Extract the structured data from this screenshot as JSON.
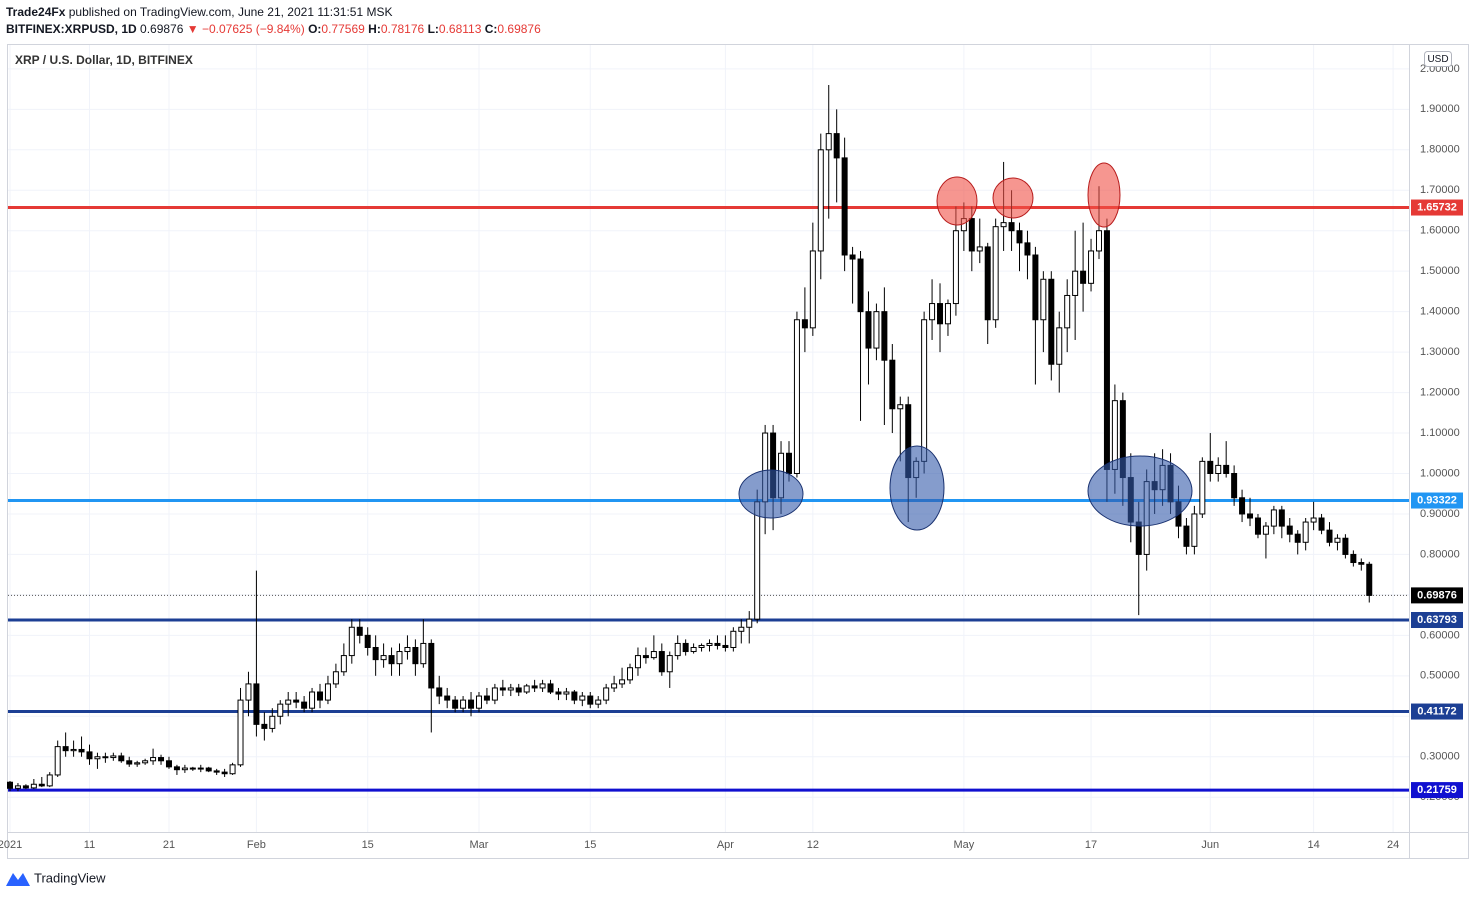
{
  "header": {
    "author": "Trade24Fx",
    "published": "published on TradingView.com, June 21, 2021 11:31:51 MSK",
    "symbol": "BITFINEX:XRPUSD, 1D",
    "price": "0.69876",
    "change": "▼ −0.07625 (−9.84%)",
    "ohlc": [
      {
        "key": "O:",
        "value": "0.77569"
      },
      {
        "key": "H:",
        "value": "0.78176"
      },
      {
        "key": "L:",
        "value": "0.68113"
      },
      {
        "key": "C:",
        "value": "0.69876"
      }
    ]
  },
  "footer": {
    "brand": "TradingView"
  },
  "chart_data": {
    "type": "candlestick",
    "title": "XRP / U.S. Dollar, 1D, BITFINEX",
    "currency": "USD",
    "up_color": "#ffffff",
    "down_color": "#000000",
    "grid": true,
    "xlim": [
      "2021-01-01",
      "2021-06-26"
    ],
    "ylim": [
      0.114,
      2.059
    ],
    "yticks": [
      {
        "value": 0.2,
        "label": "0.20000"
      },
      {
        "value": 0.3,
        "label": "0.30000"
      },
      {
        "value": 0.4,
        "label": "0.40000"
      },
      {
        "value": 0.5,
        "label": "0.50000"
      },
      {
        "value": 0.6,
        "label": "0.60000"
      },
      {
        "value": 0.7,
        "label": "0.70000"
      },
      {
        "value": 0.8,
        "label": "0.80000"
      },
      {
        "value": 0.9,
        "label": "0.90000"
      },
      {
        "value": 1.0,
        "label": "1.00000"
      },
      {
        "value": 1.1,
        "label": "1.10000"
      },
      {
        "value": 1.2,
        "label": "1.20000"
      },
      {
        "value": 1.3,
        "label": "1.30000"
      },
      {
        "value": 1.4,
        "label": "1.40000"
      },
      {
        "value": 1.5,
        "label": "1.50000"
      },
      {
        "value": 1.6,
        "label": "1.60000"
      },
      {
        "value": 1.7,
        "label": "1.70000"
      },
      {
        "value": 1.8,
        "label": "1.80000"
      },
      {
        "value": 1.9,
        "label": "1.90000"
      },
      {
        "value": 2.0,
        "label": "2.00000"
      }
    ],
    "xticks": [
      {
        "value": "2021-01-01",
        "label": "2021"
      },
      {
        "value": "2021-01-11",
        "label": "11"
      },
      {
        "value": "2021-01-21",
        "label": "21"
      },
      {
        "value": "2021-02-01",
        "label": "Feb"
      },
      {
        "value": "2021-02-15",
        "label": "15"
      },
      {
        "value": "2021-03-01",
        "label": "Mar"
      },
      {
        "value": "2021-03-15",
        "label": "15"
      },
      {
        "value": "2021-04-01",
        "label": "Apr"
      },
      {
        "value": "2021-04-12",
        "label": "12"
      },
      {
        "value": "2021-05-01",
        "label": "May"
      },
      {
        "value": "2021-05-17",
        "label": "17"
      },
      {
        "value": "2021-06-01",
        "label": "Jun"
      },
      {
        "value": "2021-06-14",
        "label": "14"
      },
      {
        "value": "2021-06-24",
        "label": "24"
      }
    ],
    "levels": [
      {
        "value": 1.65732,
        "color": "#e53935"
      },
      {
        "value": 0.93322,
        "color": "#2196f3"
      },
      {
        "value": 0.63793,
        "color": "#1c3f94"
      },
      {
        "value": 0.41172,
        "color": "#1c3f94"
      },
      {
        "value": 0.21759,
        "color": "#1010d0"
      }
    ],
    "last": {
      "value": 0.69876,
      "color": "#000000"
    },
    "x": [
      "2021-01-01",
      "2021-01-02",
      "2021-01-03",
      "2021-01-04",
      "2021-01-05",
      "2021-01-06",
      "2021-01-07",
      "2021-01-08",
      "2021-01-09",
      "2021-01-10",
      "2021-01-11",
      "2021-01-12",
      "2021-01-13",
      "2021-01-14",
      "2021-01-15",
      "2021-01-16",
      "2021-01-17",
      "2021-01-18",
      "2021-01-19",
      "2021-01-20",
      "2021-01-21",
      "2021-01-22",
      "2021-01-23",
      "2021-01-24",
      "2021-01-25",
      "2021-01-26",
      "2021-01-27",
      "2021-01-28",
      "2021-01-29",
      "2021-01-30",
      "2021-01-31",
      "2021-02-01",
      "2021-02-02",
      "2021-02-03",
      "2021-02-04",
      "2021-02-05",
      "2021-02-06",
      "2021-02-07",
      "2021-02-08",
      "2021-02-09",
      "2021-02-10",
      "2021-02-11",
      "2021-02-12",
      "2021-02-13",
      "2021-02-14",
      "2021-02-15",
      "2021-02-16",
      "2021-02-17",
      "2021-02-18",
      "2021-02-19",
      "2021-02-20",
      "2021-02-21",
      "2021-02-22",
      "2021-02-23",
      "2021-02-24",
      "2021-02-25",
      "2021-02-26",
      "2021-02-27",
      "2021-02-28",
      "2021-03-01",
      "2021-03-02",
      "2021-03-03",
      "2021-03-04",
      "2021-03-05",
      "2021-03-06",
      "2021-03-07",
      "2021-03-08",
      "2021-03-09",
      "2021-03-10",
      "2021-03-11",
      "2021-03-12",
      "2021-03-13",
      "2021-03-14",
      "2021-03-15",
      "2021-03-16",
      "2021-03-17",
      "2021-03-18",
      "2021-03-19",
      "2021-03-20",
      "2021-03-21",
      "2021-03-22",
      "2021-03-23",
      "2021-03-24",
      "2021-03-25",
      "2021-03-26",
      "2021-03-27",
      "2021-03-28",
      "2021-03-29",
      "2021-03-30",
      "2021-03-31",
      "2021-04-01",
      "2021-04-02",
      "2021-04-03",
      "2021-04-04",
      "2021-04-05",
      "2021-04-06",
      "2021-04-07",
      "2021-04-08",
      "2021-04-09",
      "2021-04-10",
      "2021-04-11",
      "2021-04-12",
      "2021-04-13",
      "2021-04-14",
      "2021-04-15",
      "2021-04-16",
      "2021-04-17",
      "2021-04-18",
      "2021-04-19",
      "2021-04-20",
      "2021-04-21",
      "2021-04-22",
      "2021-04-23",
      "2021-04-24",
      "2021-04-25",
      "2021-04-26",
      "2021-04-27",
      "2021-04-28",
      "2021-04-29",
      "2021-04-30",
      "2021-05-01",
      "2021-05-02",
      "2021-05-03",
      "2021-05-04",
      "2021-05-05",
      "2021-05-06",
      "2021-05-07",
      "2021-05-08",
      "2021-05-09",
      "2021-05-10",
      "2021-05-11",
      "2021-05-12",
      "2021-05-13",
      "2021-05-14",
      "2021-05-15",
      "2021-05-16",
      "2021-05-17",
      "2021-05-18",
      "2021-05-19",
      "2021-05-20",
      "2021-05-21",
      "2021-05-22",
      "2021-05-23",
      "2021-05-24",
      "2021-05-25",
      "2021-05-26",
      "2021-05-27",
      "2021-05-28",
      "2021-05-29",
      "2021-05-30",
      "2021-05-31",
      "2021-06-01",
      "2021-06-02",
      "2021-06-03",
      "2021-06-04",
      "2021-06-05",
      "2021-06-06",
      "2021-06-07",
      "2021-06-08",
      "2021-06-09",
      "2021-06-10",
      "2021-06-11",
      "2021-06-12",
      "2021-06-13",
      "2021-06-14",
      "2021-06-15",
      "2021-06-16",
      "2021-06-17",
      "2021-06-18",
      "2021-06-19",
      "2021-06-20",
      "2021-06-21"
    ],
    "ohlc": [
      [
        0.237,
        0.24,
        0.215,
        0.222
      ],
      [
        0.222,
        0.235,
        0.215,
        0.228
      ],
      [
        0.228,
        0.232,
        0.22,
        0.223
      ],
      [
        0.223,
        0.245,
        0.22,
        0.232
      ],
      [
        0.232,
        0.25,
        0.225,
        0.228
      ],
      [
        0.228,
        0.262,
        0.225,
        0.255
      ],
      [
        0.255,
        0.34,
        0.25,
        0.325
      ],
      [
        0.325,
        0.36,
        0.3,
        0.315
      ],
      [
        0.315,
        0.34,
        0.3,
        0.318
      ],
      [
        0.318,
        0.35,
        0.3,
        0.312
      ],
      [
        0.312,
        0.33,
        0.28,
        0.295
      ],
      [
        0.295,
        0.31,
        0.27,
        0.3
      ],
      [
        0.3,
        0.31,
        0.285,
        0.298
      ],
      [
        0.298,
        0.31,
        0.29,
        0.302
      ],
      [
        0.302,
        0.31,
        0.285,
        0.29
      ],
      [
        0.29,
        0.3,
        0.275,
        0.282
      ],
      [
        0.282,
        0.29,
        0.275,
        0.285
      ],
      [
        0.285,
        0.295,
        0.28,
        0.29
      ],
      [
        0.29,
        0.32,
        0.28,
        0.298
      ],
      [
        0.298,
        0.305,
        0.28,
        0.29
      ],
      [
        0.29,
        0.3,
        0.27,
        0.275
      ],
      [
        0.275,
        0.28,
        0.255,
        0.268
      ],
      [
        0.268,
        0.28,
        0.26,
        0.272
      ],
      [
        0.272,
        0.275,
        0.265,
        0.27
      ],
      [
        0.27,
        0.28,
        0.262,
        0.272
      ],
      [
        0.272,
        0.275,
        0.262,
        0.265
      ],
      [
        0.265,
        0.27,
        0.255,
        0.262
      ],
      [
        0.262,
        0.27,
        0.25,
        0.258
      ],
      [
        0.258,
        0.285,
        0.255,
        0.28
      ],
      [
        0.28,
        0.47,
        0.275,
        0.44
      ],
      [
        0.44,
        0.51,
        0.4,
        0.48
      ],
      [
        0.48,
        0.76,
        0.35,
        0.38
      ],
      [
        0.38,
        0.41,
        0.34,
        0.37
      ],
      [
        0.37,
        0.42,
        0.36,
        0.4
      ],
      [
        0.4,
        0.44,
        0.38,
        0.43
      ],
      [
        0.43,
        0.46,
        0.4,
        0.44
      ],
      [
        0.44,
        0.46,
        0.42,
        0.435
      ],
      [
        0.435,
        0.45,
        0.41,
        0.42
      ],
      [
        0.42,
        0.47,
        0.41,
        0.46
      ],
      [
        0.46,
        0.48,
        0.42,
        0.44
      ],
      [
        0.44,
        0.5,
        0.43,
        0.48
      ],
      [
        0.48,
        0.53,
        0.47,
        0.51
      ],
      [
        0.51,
        0.58,
        0.5,
        0.55
      ],
      [
        0.55,
        0.64,
        0.53,
        0.62
      ],
      [
        0.62,
        0.64,
        0.58,
        0.6
      ],
      [
        0.6,
        0.62,
        0.55,
        0.57
      ],
      [
        0.57,
        0.6,
        0.5,
        0.54
      ],
      [
        0.54,
        0.58,
        0.52,
        0.55
      ],
      [
        0.55,
        0.57,
        0.5,
        0.53
      ],
      [
        0.53,
        0.58,
        0.5,
        0.56
      ],
      [
        0.56,
        0.6,
        0.54,
        0.57
      ],
      [
        0.57,
        0.59,
        0.5,
        0.53
      ],
      [
        0.53,
        0.64,
        0.52,
        0.58
      ],
      [
        0.58,
        0.59,
        0.36,
        0.47
      ],
      [
        0.47,
        0.5,
        0.43,
        0.45
      ],
      [
        0.45,
        0.47,
        0.42,
        0.44
      ],
      [
        0.44,
        0.45,
        0.41,
        0.42
      ],
      [
        0.42,
        0.45,
        0.41,
        0.44
      ],
      [
        0.44,
        0.46,
        0.4,
        0.42
      ],
      [
        0.42,
        0.46,
        0.41,
        0.45
      ],
      [
        0.45,
        0.47,
        0.43,
        0.44
      ],
      [
        0.44,
        0.48,
        0.43,
        0.47
      ],
      [
        0.47,
        0.49,
        0.45,
        0.465
      ],
      [
        0.465,
        0.48,
        0.45,
        0.47
      ],
      [
        0.47,
        0.48,
        0.45,
        0.46
      ],
      [
        0.46,
        0.48,
        0.455,
        0.475
      ],
      [
        0.475,
        0.49,
        0.46,
        0.47
      ],
      [
        0.47,
        0.49,
        0.46,
        0.48
      ],
      [
        0.48,
        0.49,
        0.455,
        0.46
      ],
      [
        0.46,
        0.47,
        0.44,
        0.455
      ],
      [
        0.455,
        0.47,
        0.44,
        0.46
      ],
      [
        0.46,
        0.465,
        0.43,
        0.44
      ],
      [
        0.44,
        0.46,
        0.425,
        0.45
      ],
      [
        0.45,
        0.46,
        0.42,
        0.43
      ],
      [
        0.43,
        0.45,
        0.42,
        0.44
      ],
      [
        0.44,
        0.48,
        0.43,
        0.47
      ],
      [
        0.47,
        0.5,
        0.46,
        0.48
      ],
      [
        0.48,
        0.52,
        0.47,
        0.49
      ],
      [
        0.49,
        0.53,
        0.48,
        0.52
      ],
      [
        0.52,
        0.57,
        0.5,
        0.55
      ],
      [
        0.55,
        0.57,
        0.53,
        0.545
      ],
      [
        0.545,
        0.6,
        0.54,
        0.56
      ],
      [
        0.56,
        0.58,
        0.5,
        0.51
      ],
      [
        0.51,
        0.56,
        0.47,
        0.55
      ],
      [
        0.55,
        0.6,
        0.54,
        0.58
      ],
      [
        0.58,
        0.59,
        0.55,
        0.56
      ],
      [
        0.56,
        0.58,
        0.555,
        0.57
      ],
      [
        0.57,
        0.58,
        0.56,
        0.575
      ],
      [
        0.575,
        0.59,
        0.56,
        0.58
      ],
      [
        0.58,
        0.6,
        0.565,
        0.575
      ],
      [
        0.575,
        0.6,
        0.56,
        0.57
      ],
      [
        0.57,
        0.62,
        0.56,
        0.61
      ],
      [
        0.61,
        0.64,
        0.58,
        0.62
      ],
      [
        0.62,
        0.66,
        0.58,
        0.64
      ],
      [
        0.64,
        0.96,
        0.63,
        0.93
      ],
      [
        0.93,
        1.12,
        0.85,
        1.1
      ],
      [
        1.1,
        1.12,
        0.86,
        0.94
      ],
      [
        0.94,
        1.08,
        0.9,
        1.05
      ],
      [
        1.05,
        1.08,
        0.98,
        1.0
      ],
      [
        1.0,
        1.4,
        0.99,
        1.38
      ],
      [
        1.38,
        1.46,
        1.3,
        1.36
      ],
      [
        1.36,
        1.62,
        1.34,
        1.55
      ],
      [
        1.55,
        1.84,
        1.48,
        1.8
      ],
      [
        1.8,
        1.96,
        1.63,
        1.84
      ],
      [
        1.84,
        1.9,
        1.67,
        1.78
      ],
      [
        1.78,
        1.83,
        1.5,
        1.54
      ],
      [
        1.54,
        1.56,
        1.42,
        1.53
      ],
      [
        1.53,
        1.55,
        1.13,
        1.4
      ],
      [
        1.4,
        1.45,
        1.22,
        1.31
      ],
      [
        1.31,
        1.42,
        1.28,
        1.4
      ],
      [
        1.4,
        1.46,
        1.12,
        1.28
      ],
      [
        1.28,
        1.32,
        1.1,
        1.16
      ],
      [
        1.16,
        1.19,
        1.03,
        1.17
      ],
      [
        1.17,
        1.19,
        0.88,
        0.99
      ],
      [
        0.99,
        1.04,
        0.94,
        1.03
      ],
      [
        1.03,
        1.4,
        1.0,
        1.38
      ],
      [
        1.38,
        1.48,
        1.33,
        1.42
      ],
      [
        1.42,
        1.47,
        1.3,
        1.37
      ],
      [
        1.37,
        1.43,
        1.34,
        1.42
      ],
      [
        1.42,
        1.66,
        1.39,
        1.6
      ],
      [
        1.6,
        1.67,
        1.55,
        1.63
      ],
      [
        1.63,
        1.66,
        1.5,
        1.55
      ],
      [
        1.55,
        1.63,
        1.52,
        1.56
      ],
      [
        1.56,
        1.57,
        1.32,
        1.38
      ],
      [
        1.38,
        1.63,
        1.36,
        1.61
      ],
      [
        1.61,
        1.77,
        1.55,
        1.62
      ],
      [
        1.62,
        1.7,
        1.55,
        1.6
      ],
      [
        1.6,
        1.62,
        1.5,
        1.57
      ],
      [
        1.57,
        1.6,
        1.48,
        1.54
      ],
      [
        1.54,
        1.56,
        1.22,
        1.38
      ],
      [
        1.38,
        1.5,
        1.3,
        1.48
      ],
      [
        1.48,
        1.5,
        1.23,
        1.27
      ],
      [
        1.27,
        1.4,
        1.2,
        1.36
      ],
      [
        1.36,
        1.48,
        1.3,
        1.44
      ],
      [
        1.44,
        1.6,
        1.33,
        1.5
      ],
      [
        1.5,
        1.62,
        1.4,
        1.47
      ],
      [
        1.47,
        1.58,
        1.45,
        1.55
      ],
      [
        1.55,
        1.71,
        1.53,
        1.6
      ],
      [
        1.6,
        1.63,
        0.93,
        1.01
      ],
      [
        1.01,
        1.22,
        0.95,
        1.18
      ],
      [
        1.18,
        1.2,
        0.92,
        0.99
      ],
      [
        0.99,
        1.05,
        0.83,
        0.88
      ],
      [
        0.88,
        0.93,
        0.65,
        0.8
      ],
      [
        0.8,
        1.01,
        0.76,
        0.98
      ],
      [
        0.98,
        1.05,
        0.9,
        0.96
      ],
      [
        0.96,
        1.06,
        0.92,
        1.02
      ],
      [
        1.02,
        1.05,
        0.9,
        0.93
      ],
      [
        0.93,
        0.97,
        0.84,
        0.87
      ],
      [
        0.87,
        0.89,
        0.8,
        0.82
      ],
      [
        0.82,
        0.92,
        0.8,
        0.9
      ],
      [
        0.9,
        1.04,
        0.89,
        1.03
      ],
      [
        1.03,
        1.1,
        0.98,
        1.0
      ],
      [
        1.0,
        1.04,
        0.98,
        1.02
      ],
      [
        1.02,
        1.08,
        0.99,
        1.0
      ],
      [
        1.0,
        1.02,
        0.92,
        0.94
      ],
      [
        0.94,
        0.96,
        0.88,
        0.9
      ],
      [
        0.9,
        0.94,
        0.87,
        0.89
      ],
      [
        0.89,
        0.9,
        0.84,
        0.85
      ],
      [
        0.85,
        0.88,
        0.79,
        0.87
      ],
      [
        0.87,
        0.92,
        0.85,
        0.91
      ],
      [
        0.91,
        0.92,
        0.84,
        0.87
      ],
      [
        0.87,
        0.89,
        0.83,
        0.85
      ],
      [
        0.85,
        0.86,
        0.8,
        0.83
      ],
      [
        0.83,
        0.89,
        0.81,
        0.88
      ],
      [
        0.88,
        0.93,
        0.86,
        0.89
      ],
      [
        0.89,
        0.9,
        0.85,
        0.86
      ],
      [
        0.86,
        0.88,
        0.82,
        0.83
      ],
      [
        0.83,
        0.85,
        0.81,
        0.84
      ],
      [
        0.84,
        0.85,
        0.79,
        0.8
      ],
      [
        0.8,
        0.81,
        0.77,
        0.78
      ],
      [
        0.78,
        0.79,
        0.76,
        0.77569
      ],
      [
        0.77569,
        0.78176,
        0.68113,
        0.69876
      ]
    ]
  }
}
